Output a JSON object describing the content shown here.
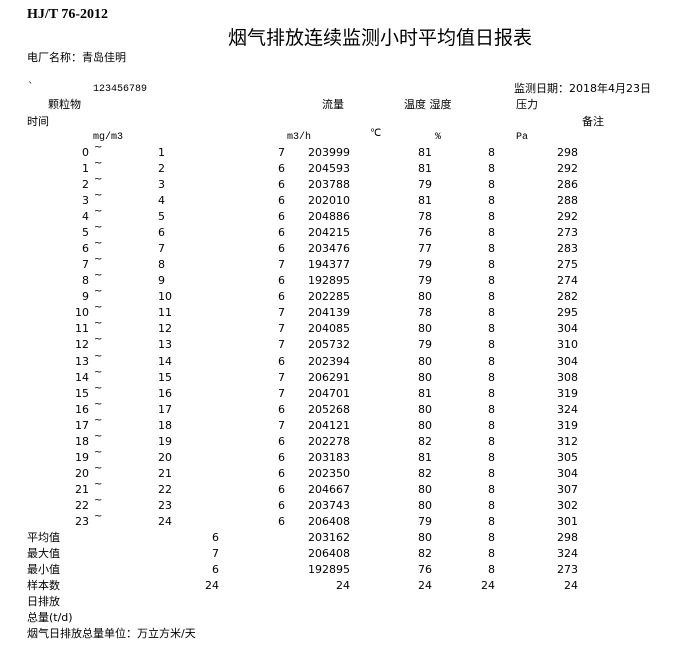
{
  "standard": "HJ/T 76-2012",
  "title": "烟气排放连续监测小时平均值日报表",
  "plant": "电厂名称：青岛佳明",
  "backtick": "`",
  "code": "123456789",
  "date": "监测日期：2018年4月23日",
  "headers": {
    "particulate": "颗粒物",
    "flow": "流量",
    "temp_humidity": "温度 湿度",
    "pressure": "压力",
    "time": "时间",
    "remarks": "备注"
  },
  "units": {
    "particulate": "mg/m3",
    "flow": "m3/h",
    "temp": "℃",
    "humidity": "%",
    "pressure": "Pa"
  },
  "tilde": "~",
  "rows": [
    {
      "start": "0",
      "end": "1",
      "particulate": "7",
      "flow": "203999",
      "temp": "81",
      "humidity": "8",
      "pressure": "298"
    },
    {
      "start": "1",
      "end": "2",
      "particulate": "6",
      "flow": "204593",
      "temp": "81",
      "humidity": "8",
      "pressure": "292"
    },
    {
      "start": "2",
      "end": "3",
      "particulate": "6",
      "flow": "203788",
      "temp": "79",
      "humidity": "8",
      "pressure": "286"
    },
    {
      "start": "3",
      "end": "4",
      "particulate": "6",
      "flow": "202010",
      "temp": "81",
      "humidity": "8",
      "pressure": "288"
    },
    {
      "start": "4",
      "end": "5",
      "particulate": "6",
      "flow": "204886",
      "temp": "78",
      "humidity": "8",
      "pressure": "292"
    },
    {
      "start": "5",
      "end": "6",
      "particulate": "6",
      "flow": "204215",
      "temp": "76",
      "humidity": "8",
      "pressure": "273"
    },
    {
      "start": "6",
      "end": "7",
      "particulate": "6",
      "flow": "203476",
      "temp": "77",
      "humidity": "8",
      "pressure": "283"
    },
    {
      "start": "7",
      "end": "8",
      "particulate": "7",
      "flow": "194377",
      "temp": "79",
      "humidity": "8",
      "pressure": "275"
    },
    {
      "start": "8",
      "end": "9",
      "particulate": "6",
      "flow": "192895",
      "temp": "79",
      "humidity": "8",
      "pressure": "274"
    },
    {
      "start": "9",
      "end": "10",
      "particulate": "6",
      "flow": "202285",
      "temp": "80",
      "humidity": "8",
      "pressure": "282"
    },
    {
      "start": "10",
      "end": "11",
      "particulate": "7",
      "flow": "204139",
      "temp": "78",
      "humidity": "8",
      "pressure": "295"
    },
    {
      "start": "11",
      "end": "12",
      "particulate": "7",
      "flow": "204085",
      "temp": "80",
      "humidity": "8",
      "pressure": "304"
    },
    {
      "start": "12",
      "end": "13",
      "particulate": "7",
      "flow": "205732",
      "temp": "79",
      "humidity": "8",
      "pressure": "310"
    },
    {
      "start": "13",
      "end": "14",
      "particulate": "6",
      "flow": "202394",
      "temp": "80",
      "humidity": "8",
      "pressure": "304"
    },
    {
      "start": "14",
      "end": "15",
      "particulate": "7",
      "flow": "206291",
      "temp": "80",
      "humidity": "8",
      "pressure": "308"
    },
    {
      "start": "15",
      "end": "16",
      "particulate": "7",
      "flow": "204701",
      "temp": "81",
      "humidity": "8",
      "pressure": "319"
    },
    {
      "start": "16",
      "end": "17",
      "particulate": "6",
      "flow": "205268",
      "temp": "80",
      "humidity": "8",
      "pressure": "324"
    },
    {
      "start": "17",
      "end": "18",
      "particulate": "7",
      "flow": "204121",
      "temp": "80",
      "humidity": "8",
      "pressure": "319"
    },
    {
      "start": "18",
      "end": "19",
      "particulate": "6",
      "flow": "202278",
      "temp": "82",
      "humidity": "8",
      "pressure": "312"
    },
    {
      "start": "19",
      "end": "20",
      "particulate": "6",
      "flow": "203183",
      "temp": "81",
      "humidity": "8",
      "pressure": "305"
    },
    {
      "start": "20",
      "end": "21",
      "particulate": "6",
      "flow": "202350",
      "temp": "82",
      "humidity": "8",
      "pressure": "304"
    },
    {
      "start": "21",
      "end": "22",
      "particulate": "6",
      "flow": "204667",
      "temp": "80",
      "humidity": "8",
      "pressure": "307"
    },
    {
      "start": "22",
      "end": "23",
      "particulate": "6",
      "flow": "203743",
      "temp": "80",
      "humidity": "8",
      "pressure": "302"
    },
    {
      "start": "23",
      "end": "24",
      "particulate": "6",
      "flow": "206408",
      "temp": "79",
      "humidity": "8",
      "pressure": "301"
    }
  ],
  "summary": [
    {
      "label": "平均值",
      "particulate": "6",
      "flow": "203162",
      "temp": "80",
      "humidity": "8",
      "pressure": "298"
    },
    {
      "label": "最大值",
      "particulate": "7",
      "flow": "206408",
      "temp": "82",
      "humidity": "8",
      "pressure": "324"
    },
    {
      "label": "最小值",
      "particulate": "6",
      "flow": "192895",
      "temp": "76",
      "humidity": "8",
      "pressure": "273"
    },
    {
      "label": "样本数",
      "particulate": "24",
      "flow": "24",
      "temp": "24",
      "humidity": "24",
      "pressure": "24"
    }
  ],
  "footer": {
    "daily_line1": "日排放",
    "daily_line2": "总量(t/d)",
    "unit_note": "烟气日排放总量单位：万立方米/天"
  }
}
